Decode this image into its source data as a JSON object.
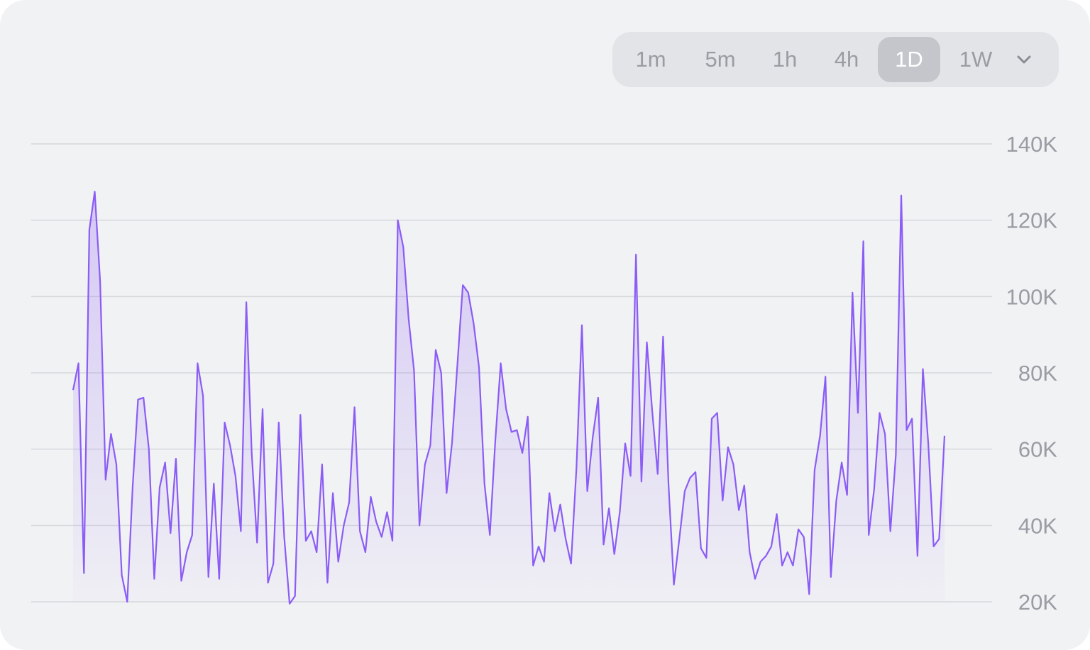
{
  "timeframes": {
    "options": [
      "1m",
      "5m",
      "1h",
      "4h",
      "1D",
      "1W"
    ],
    "selected": "1D",
    "dropdown_icon": "chevron-down-icon"
  },
  "colors": {
    "background": "#f1f2f4",
    "line": "#8b5cf6",
    "area_fill": "#8b5cf6",
    "grid": "#d6d8dc",
    "ref_line_left": "#b4b6bc",
    "ref_line_right": "#c4b5fd",
    "tick_text": "#9a9ca4"
  },
  "chart_data": {
    "type": "area",
    "title": "",
    "xlabel": "",
    "ylabel": "",
    "ylim": [
      20000,
      150000
    ],
    "y_ticks": [
      20000,
      40000,
      60000,
      80000,
      100000,
      120000,
      140000
    ],
    "y_tick_labels": [
      "20K",
      "40K",
      "60K",
      "80K",
      "100K",
      "120K",
      "140K"
    ],
    "y_axis_side": "right",
    "grid": true,
    "reference_line": 37500,
    "series": [
      {
        "values": [
          75500,
          82500,
          27500,
          117500,
          127500,
          104000,
          52000,
          64000,
          56000,
          27000,
          20000,
          50000,
          73000,
          73500,
          60000,
          26000,
          50000,
          56500,
          38000,
          57500,
          25500,
          33000,
          37500,
          82500,
          74000,
          26500,
          51000,
          26000,
          67000,
          61000,
          53000,
          38500,
          98500,
          59000,
          35500,
          70500,
          25000,
          30000,
          67000,
          37000,
          19500,
          21500,
          69000,
          36000,
          38500,
          33000,
          56000,
          25000,
          48500,
          30500,
          40000,
          46000,
          71000,
          38500,
          33000,
          47500,
          41000,
          37000,
          43500,
          36000,
          120000,
          113000,
          94000,
          80500,
          40000,
          56000,
          61000,
          86000,
          80000,
          48500,
          61500,
          82000,
          103000,
          101000,
          93000,
          81500,
          51000,
          37500,
          62000,
          82500,
          70500,
          64500,
          65000,
          59000,
          68500,
          29500,
          34500,
          30500,
          48500,
          38500,
          45500,
          36500,
          30000,
          55000,
          92500,
          49000,
          63000,
          73500,
          35000,
          44500,
          32500,
          43500,
          61500,
          53000,
          111000,
          51500,
          88000,
          70000,
          53500,
          89500,
          51000,
          24500,
          36500,
          49000,
          52500,
          54000,
          34000,
          31500,
          68000,
          69500,
          46500,
          60500,
          56000,
          44000,
          50500,
          33000,
          26000,
          30500,
          32000,
          34500,
          43000,
          29500,
          33000,
          29500,
          39000,
          37000,
          22000,
          54500,
          63500,
          79000,
          26500,
          46500,
          56500,
          48000,
          101000,
          69500,
          114500,
          37500,
          49500,
          69500,
          64000,
          38500,
          58500,
          126500,
          65000,
          68000,
          32000,
          81000,
          61500,
          34500,
          36500,
          63500
        ]
      }
    ]
  }
}
